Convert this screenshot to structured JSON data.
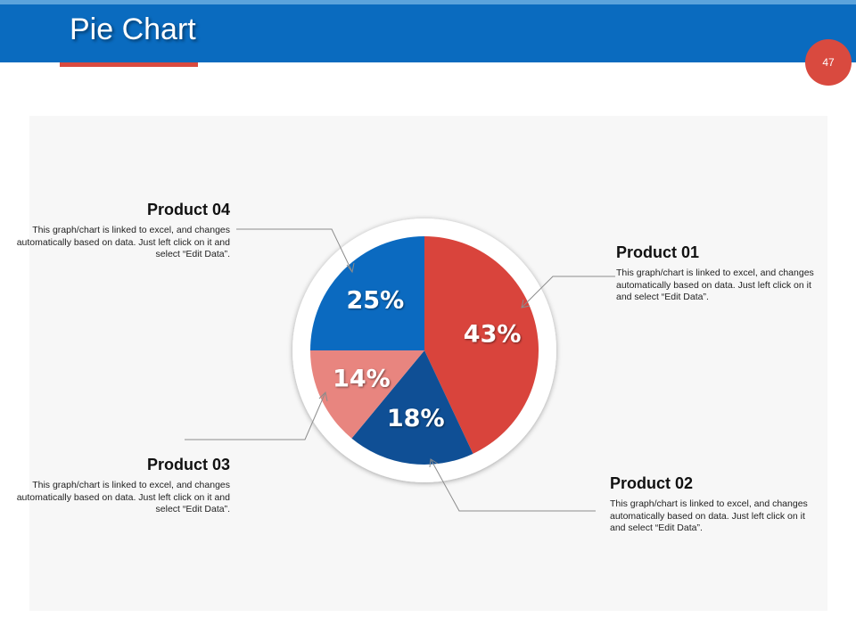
{
  "header": {
    "title": "Pie Chart",
    "page_number": "47"
  },
  "colors": {
    "header_blue": "#0a6bbf",
    "accent_red": "#d94a3f",
    "panel_gray": "#f7f7f7"
  },
  "products": [
    {
      "name": "Product 01",
      "description": "This graph/chart is linked to excel, and changes automatically based on data. Just left click on it and select “Edit Data”."
    },
    {
      "name": "Product 02",
      "description": "This graph/chart is linked to excel, and changes automatically based on data. Just left click on it and select “Edit Data”."
    },
    {
      "name": "Product 03",
      "description": "This graph/chart is linked to excel, and changes automatically based on data. Just left click on it and select “Edit Data”."
    },
    {
      "name": "Product 04",
      "description": "This graph/chart is linked to excel, and changes automatically based on data. Just left click on it and select “Edit Data”."
    }
  ],
  "chart_data": {
    "type": "pie",
    "title": "Pie Chart",
    "categories": [
      "Product 01",
      "Product 02",
      "Product 03",
      "Product 04"
    ],
    "values": [
      43,
      18,
      14,
      25
    ],
    "labels": [
      "43%",
      "18%",
      "14%",
      "25%"
    ],
    "colors": [
      "#d9443c",
      "#0f4f95",
      "#e8857f",
      "#0b6ac0"
    ],
    "start": "12 o'clock",
    "direction": "clockwise",
    "legend": "none"
  }
}
